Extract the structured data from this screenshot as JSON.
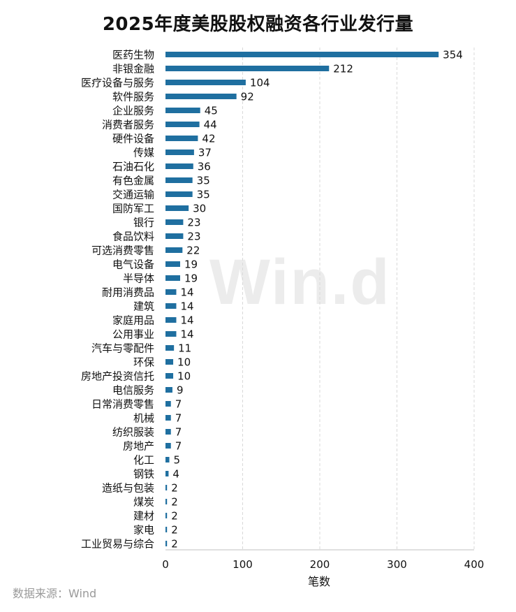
{
  "title": "2025年度美股股权融资各行业发行量",
  "watermark": "Win.d",
  "source": "数据来源：Wind",
  "colors": {
    "bar": "#1f6fa0",
    "grid": "#d9d9d9",
    "axis": "#bfbfbf"
  },
  "chart_data": {
    "type": "bar",
    "orientation": "horizontal",
    "xlabel": "笔数",
    "ylabel": "",
    "xlim": [
      0,
      400
    ],
    "xticks": [
      0,
      100,
      200,
      300,
      400
    ],
    "grid": "vertical-dashed",
    "categories": [
      "医药生物",
      "非银金融",
      "医疗设备与服务",
      "软件服务",
      "企业服务",
      "消费者服务",
      "硬件设备",
      "传媒",
      "石油石化",
      "有色金属",
      "交通运输",
      "国防军工",
      "银行",
      "食品饮料",
      "可选消费零售",
      "电气设备",
      "半导体",
      "耐用消费品",
      "建筑",
      "家庭用品",
      "公用事业",
      "汽车与零配件",
      "环保",
      "房地产投资信托",
      "电信服务",
      "日常消费零售",
      "机械",
      "纺织服装",
      "房地产",
      "化工",
      "钢铁",
      "造纸与包装",
      "煤炭",
      "建材",
      "家电",
      "工业贸易与综合"
    ],
    "values": [
      354,
      212,
      104,
      92,
      45,
      44,
      42,
      37,
      36,
      35,
      35,
      30,
      23,
      23,
      22,
      19,
      19,
      14,
      14,
      14,
      14,
      11,
      10,
      10,
      9,
      7,
      7,
      7,
      7,
      5,
      4,
      2,
      2,
      2,
      2,
      2
    ]
  }
}
